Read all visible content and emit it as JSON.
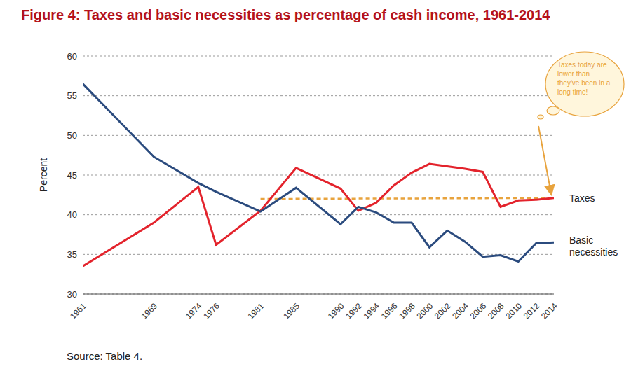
{
  "chart_data": {
    "type": "line",
    "title": "Figure 4: Taxes and basic necessities as percentage of cash income, 1961-2014",
    "y_label": "Percent",
    "source": "Source: Table 4.",
    "annotation": "Taxes today are lower than they've been in a long time!",
    "x": [
      1961,
      1969,
      1974,
      1976,
      1981,
      1985,
      1990,
      1992,
      1994,
      1996,
      1998,
      2000,
      2002,
      2004,
      2006,
      2008,
      2010,
      2012,
      2014
    ],
    "series": [
      {
        "name": "Taxes",
        "color": "#e3232c",
        "values": [
          33.5,
          39,
          43.5,
          36.2,
          40.5,
          45.9,
          43.3,
          40.5,
          41.5,
          43.7,
          45.3,
          46.4,
          46.1,
          45.8,
          45.4,
          41.0,
          41.8,
          41.9,
          42.1
        ]
      },
      {
        "name": "Basic necessities",
        "color": "#2b4b7e",
        "values": [
          56.5,
          47.3,
          44.0,
          42.9,
          40.4,
          43.4,
          38.8,
          41.0,
          40.3,
          39.0,
          39.0,
          35.9,
          38.0,
          36.6,
          34.7,
          34.9,
          34.1,
          36.4,
          36.5
        ]
      }
    ],
    "trend": {
      "x": [
        1981,
        2014
      ],
      "values": [
        42,
        42.1
      ],
      "color": "#e8a33d",
      "line_style": "dashed"
    },
    "xlim": [
      1961,
      2014
    ],
    "xticks": [
      1961,
      1969,
      1974,
      1976,
      1981,
      1985,
      1990,
      1992,
      1994,
      1996,
      1998,
      2000,
      2002,
      2004,
      2006,
      2008,
      2010,
      2012,
      2014
    ],
    "ylim": [
      30,
      60
    ],
    "yticks": [
      30,
      35,
      40,
      45,
      50,
      55,
      60
    ],
    "grid": true
  }
}
